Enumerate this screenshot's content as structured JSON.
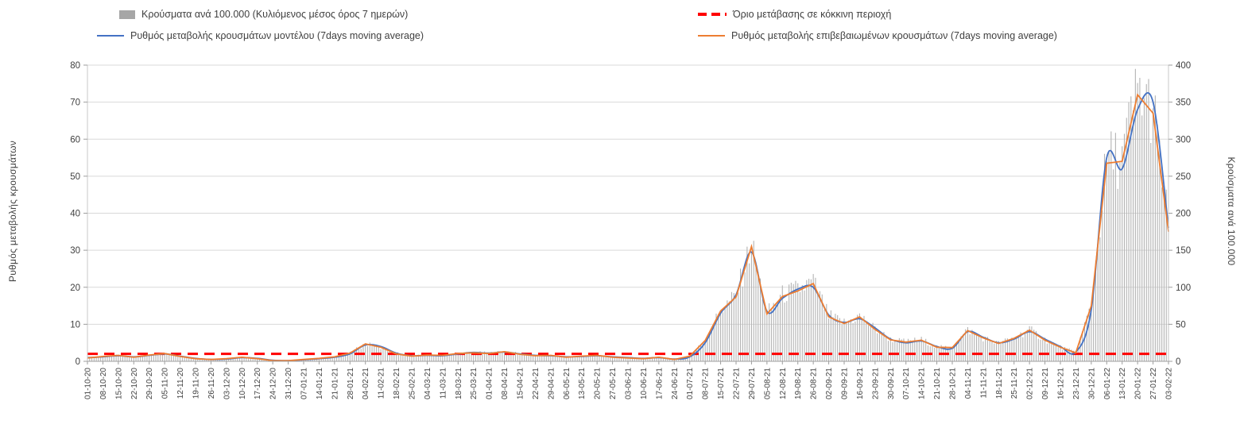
{
  "chart_data": {
    "type": "bar+line",
    "title": "",
    "legend": {
      "bars": "Κρούσματα ανά 100.000 (Κυλιόμενος μέσος όρος 7 ημερών)",
      "threshold": "Όριο μετάβασης σε κόκκινη περιοχή",
      "model": "Ρυθμός μεταβολής κρουσμάτων μοντέλου (7days moving average)",
      "confirmed": "Ρυθμός μεταβολής επιβεβαιωμένων κρουσμάτων (7days moving average)"
    },
    "left_axis": {
      "label": "Ρυθμός μεταβολής κρουσμάτων",
      "min": 0,
      "max": 80,
      "ticks": [
        0,
        10,
        20,
        30,
        40,
        50,
        60,
        70,
        80
      ]
    },
    "right_axis": {
      "label": "Κρούσματα ανά 100.000",
      "min": 0,
      "max": 400,
      "ticks": [
        0,
        50,
        100,
        150,
        200,
        250,
        300,
        350,
        400
      ]
    },
    "threshold_left_value": 2,
    "colors": {
      "bars": "#b3b3b3",
      "model": "#4472c4",
      "confirmed": "#ed7d31",
      "threshold": "#ff0000",
      "grid": "#d9d9d9",
      "axis": "#9e9e9e",
      "text": "#404040"
    },
    "x": [
      "01-10-20",
      "08-10-20",
      "15-10-20",
      "22-10-20",
      "29-10-20",
      "05-11-20",
      "12-11-20",
      "19-11-20",
      "26-11-20",
      "03-12-20",
      "10-12-20",
      "17-12-20",
      "24-12-20",
      "31-12-20",
      "07-01-21",
      "14-01-21",
      "21-01-21",
      "28-01-21",
      "04-02-21",
      "11-02-21",
      "18-02-21",
      "25-02-21",
      "04-03-21",
      "11-03-21",
      "18-03-21",
      "25-03-21",
      "01-04-21",
      "08-04-21",
      "15-04-21",
      "22-04-21",
      "29-04-21",
      "06-05-21",
      "13-05-21",
      "20-05-21",
      "27-05-21",
      "03-06-21",
      "10-06-21",
      "17-06-21",
      "24-06-21",
      "01-07-21",
      "08-07-21",
      "15-07-21",
      "22-07-21",
      "29-07-21",
      "05-08-21",
      "12-08-21",
      "19-08-21",
      "26-08-21",
      "02-09-21",
      "09-09-21",
      "16-09-21",
      "23-09-21",
      "30-09-21",
      "07-10-21",
      "14-10-21",
      "21-10-21",
      "28-10-21",
      "04-11-21",
      "11-11-21",
      "18-11-21",
      "25-11-21",
      "02-12-21",
      "09-12-21",
      "16-12-21",
      "23-12-21",
      "30-12-21",
      "06-01-22",
      "13-01-22",
      "20-01-22",
      "27-01-22",
      "03-02-22"
    ],
    "series": [
      {
        "name": "model",
        "axis": "left",
        "values": [
          1.0,
          1.2,
          1.5,
          1.2,
          1.6,
          2.0,
          1.4,
          0.8,
          0.5,
          0.6,
          1.0,
          0.8,
          0.3,
          0.2,
          0.4,
          0.7,
          1.1,
          2.0,
          4.4,
          4.0,
          2.2,
          1.5,
          1.6,
          1.5,
          2.0,
          2.4,
          2.2,
          2.5,
          2.0,
          1.6,
          1.5,
          1.2,
          1.3,
          1.5,
          1.2,
          1.0,
          0.8,
          1.0,
          0.6,
          1.2,
          5.0,
          13.0,
          18.0,
          29.5,
          13.5,
          17.0,
          19.5,
          20.0,
          12.5,
          10.5,
          11.5,
          9.0,
          6.0,
          5.0,
          5.5,
          4.0,
          3.5,
          8.0,
          6.5,
          5.0,
          6.0,
          8.0,
          6.0,
          4.0,
          2.5,
          14.0,
          55.0,
          52.0,
          68.0,
          70.0,
          36.0
        ]
      },
      {
        "name": "confirmed",
        "axis": "left",
        "values": [
          0.9,
          1.3,
          1.6,
          1.1,
          1.7,
          2.1,
          1.3,
          0.7,
          0.5,
          0.7,
          1.1,
          0.7,
          0.2,
          0.2,
          0.5,
          0.8,
          1.2,
          2.2,
          4.7,
          3.8,
          2.0,
          1.4,
          1.7,
          1.6,
          2.1,
          2.3,
          2.1,
          2.6,
          1.9,
          1.5,
          1.6,
          1.1,
          1.4,
          1.6,
          1.1,
          0.9,
          0.7,
          1.1,
          0.5,
          1.4,
          5.6,
          13.6,
          17.4,
          31.0,
          12.8,
          17.5,
          19.0,
          21.0,
          12.0,
          10.2,
          12.0,
          8.6,
          5.8,
          5.2,
          5.7,
          3.8,
          3.7,
          8.3,
          6.3,
          4.8,
          6.2,
          8.4,
          5.7,
          3.8,
          2.3,
          15.0,
          53.5,
          54.0,
          72.0,
          67.0,
          35.0
        ]
      },
      {
        "name": "cases_per_100k",
        "axis": "right",
        "values": [
          5,
          6,
          8,
          6,
          8,
          10,
          7,
          4,
          3,
          4,
          6,
          4,
          1,
          1,
          3,
          4,
          6,
          11,
          23,
          19,
          10,
          7,
          9,
          8,
          10,
          12,
          11,
          13,
          10,
          8,
          8,
          6,
          7,
          8,
          6,
          5,
          4,
          6,
          3,
          7,
          28,
          68,
          87,
          155,
          64,
          88,
          95,
          105,
          60,
          51,
          60,
          43,
          29,
          26,
          29,
          19,
          18,
          42,
          31,
          24,
          31,
          42,
          29,
          19,
          12,
          75,
          268,
          270,
          360,
          335,
          178
        ]
      }
    ]
  }
}
